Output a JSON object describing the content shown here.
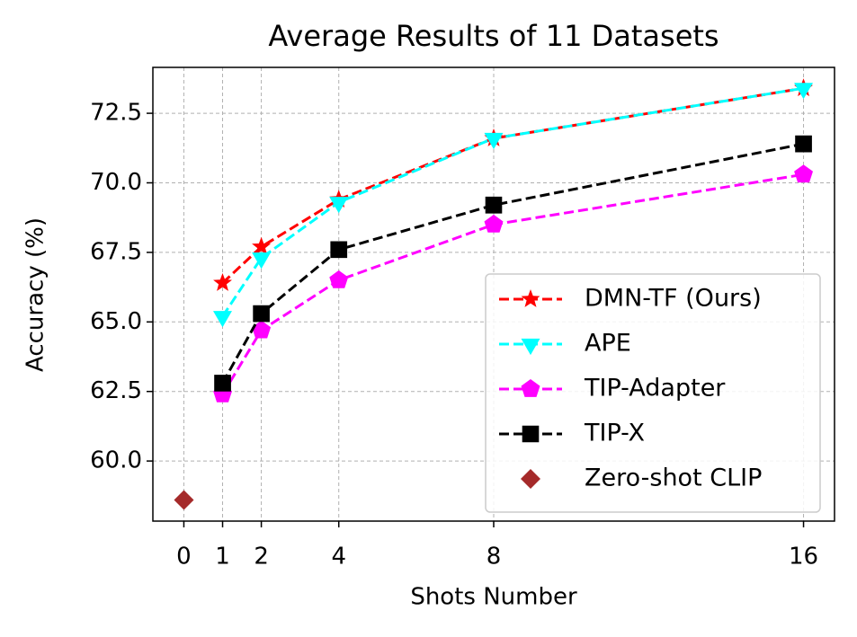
{
  "chart_data": {
    "type": "line",
    "title": "Average Results of 11 Datasets",
    "xlabel": "Shots Number",
    "ylabel": "Accuracy (%)",
    "xlim": [
      -0.8,
      16.8
    ],
    "ylim": [
      57.84,
      74.15
    ],
    "xticks": [
      0,
      1,
      2,
      4,
      8,
      16
    ],
    "yticks": [
      {
        "value": 60,
        "label": "60.0"
      },
      62.5,
      {
        "value": 65,
        "label": "65.0"
      },
      67.5,
      {
        "value": 70,
        "label": "70.0"
      },
      72.5
    ],
    "grid": true,
    "legend_position": "lower right",
    "series": [
      {
        "name": "DMN-TF (Ours)",
        "color": "#ff0000",
        "marker": "star",
        "linestyle": "dashed",
        "x": [
          1,
          2,
          4,
          8,
          16
        ],
        "values": [
          66.4,
          67.7,
          69.4,
          71.6,
          73.4
        ]
      },
      {
        "name": "APE",
        "color": "#00ffff",
        "marker": "triangle-down",
        "linestyle": "dashed",
        "x": [
          1,
          2,
          4,
          8,
          16
        ],
        "values": [
          65.2,
          67.3,
          69.3,
          71.6,
          73.4
        ]
      },
      {
        "name": "TIP-Adapter",
        "color": "#ff00ff",
        "marker": "pentagon",
        "linestyle": "dashed",
        "x": [
          1,
          2,
          4,
          8,
          16
        ],
        "values": [
          62.4,
          64.7,
          66.5,
          68.5,
          70.3
        ]
      },
      {
        "name": "TIP-X",
        "color": "#000000",
        "marker": "square",
        "linestyle": "dashed",
        "x": [
          1,
          2,
          4,
          8,
          16
        ],
        "values": [
          62.8,
          65.3,
          67.6,
          69.2,
          71.4
        ]
      },
      {
        "name": "Zero-shot CLIP",
        "color": "#a52a2a",
        "marker": "diamond",
        "linestyle": "none",
        "x": [
          0
        ],
        "values": [
          58.6
        ]
      }
    ]
  }
}
